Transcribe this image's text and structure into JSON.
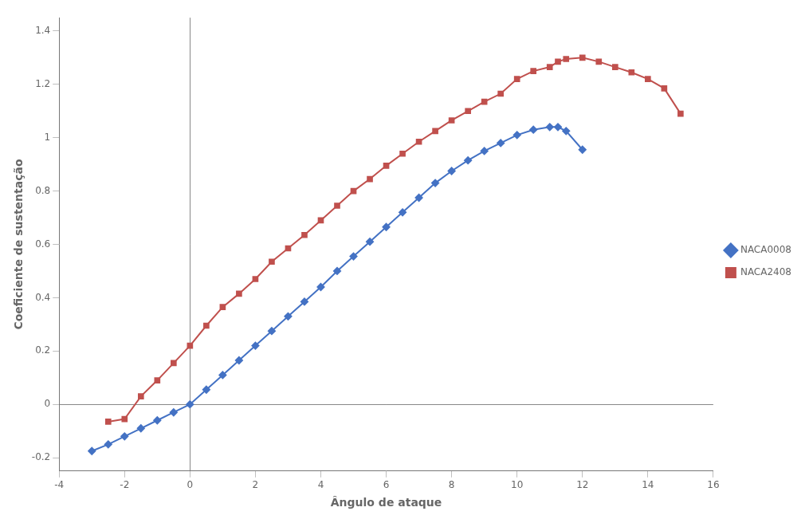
{
  "chart_data": {
    "type": "line",
    "x_label": "Ângulo de ataque",
    "y_label": "Coeficiente de sustentação",
    "xlim": [
      -4,
      16
    ],
    "ylim": [
      -0.25,
      1.45
    ],
    "xticks": [
      -4,
      -2,
      0,
      2,
      4,
      6,
      8,
      10,
      12,
      14,
      16
    ],
    "yticks": [
      -0.2,
      0,
      0.2,
      0.4,
      0.6,
      0.8,
      1,
      1.2,
      1.4
    ],
    "grid": false,
    "legend": "right",
    "series": [
      {
        "name": "NACA0008",
        "color": "#4472C4",
        "marker": "diamond",
        "x": [
          -3,
          -2.5,
          -2,
          -1.5,
          -1,
          -0.5,
          0,
          0.5,
          1,
          1.5,
          2,
          2.5,
          3,
          3.5,
          4,
          4.5,
          5,
          5.5,
          6,
          6.5,
          7,
          7.5,
          8,
          8.5,
          9,
          9.5,
          10,
          10.5,
          11,
          11.25,
          11.5,
          12
        ],
        "values": [
          -0.175,
          -0.15,
          -0.12,
          -0.09,
          -0.06,
          -0.03,
          0.0,
          0.055,
          0.11,
          0.165,
          0.22,
          0.275,
          0.33,
          0.385,
          0.44,
          0.5,
          0.555,
          0.61,
          0.665,
          0.72,
          0.775,
          0.83,
          0.875,
          0.915,
          0.95,
          0.98,
          1.01,
          1.03,
          1.04,
          1.04,
          1.025,
          0.955
        ]
      },
      {
        "name": "NACA2408",
        "color": "#C0504D",
        "marker": "square",
        "x": [
          -2.5,
          -2,
          -1.5,
          -1,
          -0.5,
          0,
          0.5,
          1,
          1.5,
          2,
          2.5,
          3,
          3.5,
          4,
          4.5,
          5,
          5.5,
          6,
          6.5,
          7,
          7.5,
          8,
          8.5,
          9,
          9.5,
          10,
          10.5,
          11,
          11.25,
          11.5,
          12,
          12.5,
          13,
          13.5,
          14,
          14.5,
          15
        ],
        "values": [
          -0.065,
          -0.055,
          0.03,
          0.09,
          0.155,
          0.22,
          0.295,
          0.365,
          0.415,
          0.47,
          0.535,
          0.585,
          0.635,
          0.69,
          0.745,
          0.8,
          0.845,
          0.895,
          0.94,
          0.985,
          1.025,
          1.065,
          1.1,
          1.135,
          1.165,
          1.22,
          1.25,
          1.265,
          1.285,
          1.295,
          1.3,
          1.285,
          1.265,
          1.245,
          1.22,
          1.185,
          1.09
        ]
      }
    ]
  }
}
